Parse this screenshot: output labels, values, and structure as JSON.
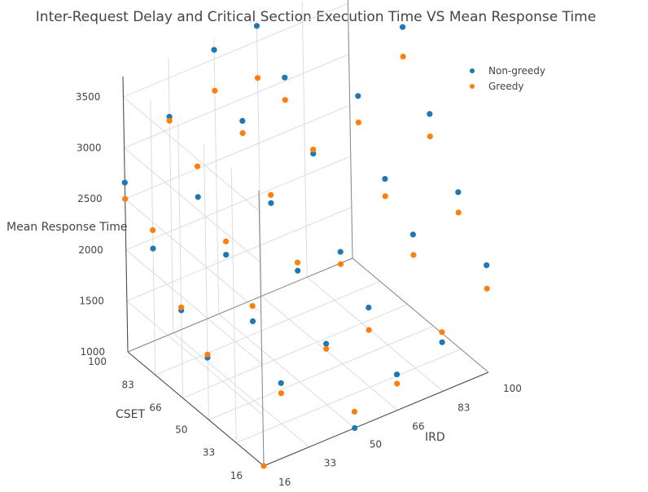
{
  "chart_data": {
    "type": "scatter3d",
    "title": "Inter-Request Delay and Critical Section Execution Time VS Mean Response Time",
    "axes": {
      "x": {
        "label": "IRD",
        "ticks": [
          16,
          33,
          50,
          66,
          83,
          100
        ],
        "range": [
          16,
          100
        ]
      },
      "y": {
        "label": "CSET",
        "ticks": [
          16,
          33,
          50,
          66,
          83,
          100
        ],
        "range": [
          16,
          100
        ]
      },
      "z": {
        "label": "Mean Response Time",
        "ticks": [
          1000,
          1500,
          2000,
          2500,
          3000,
          3500
        ],
        "range": [
          1000,
          3700
        ]
      }
    },
    "grid": true,
    "legend": {
      "placement": "top-right"
    },
    "series": [
      {
        "name": "Non-greedy",
        "color": "#1f77b4",
        "points": [
          {
            "x": 50,
            "y": 16,
            "z": 1000
          },
          {
            "x": 66,
            "y": 16,
            "z": 1350
          },
          {
            "x": 83,
            "y": 16,
            "z": 1480
          },
          {
            "x": 100,
            "y": 16,
            "z": 2050
          },
          {
            "x": 100,
            "y": 33,
            "z": 2540
          },
          {
            "x": 100,
            "y": 50,
            "z": 3080
          },
          {
            "x": 100,
            "y": 66,
            "z": 3720
          },
          {
            "x": 33,
            "y": 33,
            "z": 1400
          },
          {
            "x": 50,
            "y": 33,
            "z": 1600
          },
          {
            "x": 66,
            "y": 33,
            "z": 1780
          },
          {
            "x": 83,
            "y": 33,
            "z": 2310
          },
          {
            "x": 66,
            "y": 50,
            "z": 2100
          },
          {
            "x": 83,
            "y": 50,
            "z": 2630
          },
          {
            "x": 83,
            "y": 66,
            "z": 3230
          },
          {
            "x": 16,
            "y": 50,
            "z": 1610
          },
          {
            "x": 33,
            "y": 50,
            "z": 1780
          },
          {
            "x": 50,
            "y": 50,
            "z": 2090
          },
          {
            "x": 33,
            "y": 66,
            "z": 2220
          },
          {
            "x": 50,
            "y": 66,
            "z": 2540
          },
          {
            "x": 66,
            "y": 66,
            "z": 2850
          },
          {
            "x": 66,
            "y": 83,
            "z": 3370
          },
          {
            "x": 16,
            "y": 66,
            "z": 1860
          },
          {
            "x": 16,
            "y": 83,
            "z": 2240
          },
          {
            "x": 33,
            "y": 83,
            "z": 2560
          },
          {
            "x": 50,
            "y": 83,
            "z": 3120
          },
          {
            "x": 16,
            "y": 100,
            "z": 2660
          },
          {
            "x": 33,
            "y": 100,
            "z": 3120
          },
          {
            "x": 50,
            "y": 100,
            "z": 3590
          },
          {
            "x": 66,
            "y": 100,
            "z": 3650
          }
        ]
      },
      {
        "name": "Greedy",
        "color": "#ff7f0e",
        "points": [
          {
            "x": 16,
            "y": 16,
            "z": 1000
          },
          {
            "x": 50,
            "y": 16,
            "z": 1160
          },
          {
            "x": 66,
            "y": 16,
            "z": 1260
          },
          {
            "x": 83,
            "y": 16,
            "z": 1580
          },
          {
            "x": 100,
            "y": 16,
            "z": 1820
          },
          {
            "x": 100,
            "y": 33,
            "z": 2340
          },
          {
            "x": 100,
            "y": 50,
            "z": 2860
          },
          {
            "x": 100,
            "y": 66,
            "z": 3430
          },
          {
            "x": 33,
            "y": 33,
            "z": 1300
          },
          {
            "x": 50,
            "y": 33,
            "z": 1550
          },
          {
            "x": 66,
            "y": 33,
            "z": 1560
          },
          {
            "x": 83,
            "y": 33,
            "z": 2110
          },
          {
            "x": 66,
            "y": 50,
            "z": 1980
          },
          {
            "x": 83,
            "y": 50,
            "z": 2460
          },
          {
            "x": 83,
            "y": 66,
            "z": 2970
          },
          {
            "x": 16,
            "y": 50,
            "z": 1640
          },
          {
            "x": 33,
            "y": 50,
            "z": 1930
          },
          {
            "x": 50,
            "y": 50,
            "z": 2170
          },
          {
            "x": 33,
            "y": 66,
            "z": 2350
          },
          {
            "x": 50,
            "y": 66,
            "z": 2620
          },
          {
            "x": 66,
            "y": 66,
            "z": 2890
          },
          {
            "x": 66,
            "y": 83,
            "z": 3150
          },
          {
            "x": 16,
            "y": 66,
            "z": 1890
          },
          {
            "x": 16,
            "y": 83,
            "z": 2420
          },
          {
            "x": 33,
            "y": 83,
            "z": 2860
          },
          {
            "x": 50,
            "y": 83,
            "z": 3000
          },
          {
            "x": 16,
            "y": 100,
            "z": 2500
          },
          {
            "x": 33,
            "y": 100,
            "z": 3080
          },
          {
            "x": 50,
            "y": 100,
            "z": 3190
          },
          {
            "x": 66,
            "y": 100,
            "z": 3140
          }
        ]
      }
    ]
  }
}
